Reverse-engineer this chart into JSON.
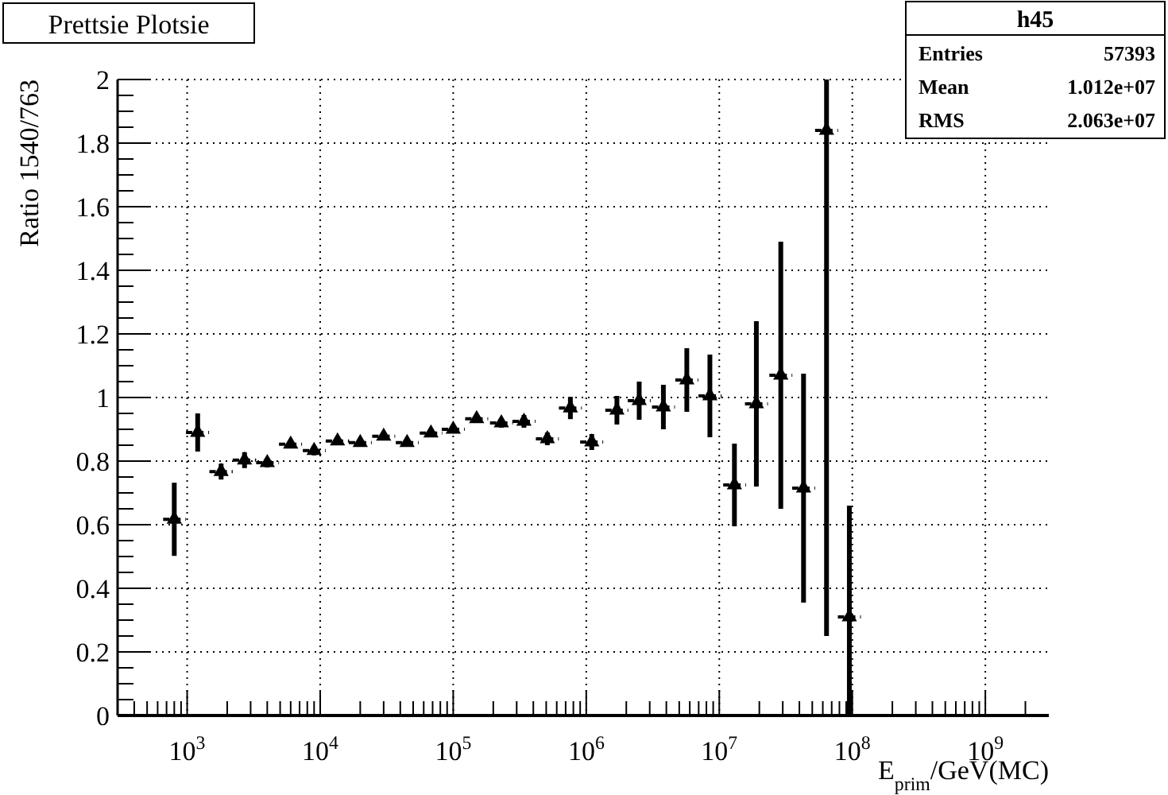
{
  "chart_data": {
    "type": "scatter",
    "title": "Prettsie Plotsie",
    "xlabel": "E$_{prim}$/GeV(MC)",
    "ylabel": "Ratio 1540/763",
    "annotations": [
      "h45",
      "Entries",
      "57393",
      "Mean",
      "1.012e+07",
      "RMS",
      "2.063e+07"
    ],
    "log": "x",
    "grid": true,
    "marker": "triangle",
    "xlim": [
      300,
      3000000000
    ],
    "ylim": [
      0,
      2
    ],
    "xticks": [
      {
        "value": 400,
        "label": null
      },
      {
        "value": 500,
        "label": null
      },
      {
        "value": 600,
        "label": null
      },
      {
        "value": 700,
        "label": null
      },
      {
        "value": 800,
        "label": null
      },
      {
        "value": 900,
        "label": null
      },
      {
        "value": 1000,
        "label": "10$^{3}$"
      },
      {
        "value": 2000,
        "label": null
      },
      {
        "value": 3000,
        "label": null
      },
      {
        "value": 4000,
        "label": null
      },
      {
        "value": 5000,
        "label": null
      },
      {
        "value": 6000,
        "label": null
      },
      {
        "value": 7000,
        "label": null
      },
      {
        "value": 8000,
        "label": null
      },
      {
        "value": 9000,
        "label": null
      },
      {
        "value": 10000,
        "label": "10$^{4}$"
      },
      {
        "value": 20000,
        "label": null
      },
      {
        "value": 30000,
        "label": null
      },
      {
        "value": 40000,
        "label": null
      },
      {
        "value": 50000,
        "label": null
      },
      {
        "value": 60000,
        "label": null
      },
      {
        "value": 70000,
        "label": null
      },
      {
        "value": 80000,
        "label": null
      },
      {
        "value": 90000,
        "label": null
      },
      {
        "value": 100000,
        "label": "10$^{5}$"
      },
      {
        "value": 200000,
        "label": null
      },
      {
        "value": 300000,
        "label": null
      },
      {
        "value": 400000,
        "label": null
      },
      {
        "value": 500000,
        "label": null
      },
      {
        "value": 600000,
        "label": null
      },
      {
        "value": 700000,
        "label": null
      },
      {
        "value": 800000,
        "label": null
      },
      {
        "value": 900000,
        "label": null
      },
      {
        "value": 1000000,
        "label": "10$^{6}$"
      },
      {
        "value": 2000000,
        "label": null
      },
      {
        "value": 3000000,
        "label": null
      },
      {
        "value": 4000000,
        "label": null
      },
      {
        "value": 5000000,
        "label": null
      },
      {
        "value": 6000000,
        "label": null
      },
      {
        "value": 7000000,
        "label": null
      },
      {
        "value": 8000000,
        "label": null
      },
      {
        "value": 9000000,
        "label": null
      },
      {
        "value": 10000000,
        "label": "10$^{7}$"
      },
      {
        "value": 20000000,
        "label": null
      },
      {
        "value": 30000000,
        "label": null
      },
      {
        "value": 40000000,
        "label": null
      },
      {
        "value": 50000000,
        "label": null
      },
      {
        "value": 60000000,
        "label": null
      },
      {
        "value": 70000000,
        "label": null
      },
      {
        "value": 80000000,
        "label": null
      },
      {
        "value": 90000000,
        "label": null
      },
      {
        "value": 100000000,
        "label": "10$^{8}$"
      },
      {
        "value": 200000000,
        "label": null
      },
      {
        "value": 300000000,
        "label": null
      },
      {
        "value": 400000000,
        "label": null
      },
      {
        "value": 500000000,
        "label": null
      },
      {
        "value": 600000000,
        "label": null
      },
      {
        "value": 700000000,
        "label": null
      },
      {
        "value": 800000000,
        "label": null
      },
      {
        "value": 900000000,
        "label": null
      },
      {
        "value": 1000000000,
        "label": "10$^{9}$"
      },
      {
        "value": 2000000000,
        "label": null
      }
    ],
    "yticks": [
      0,
      {
        "value": 0.05,
        "label": null
      },
      {
        "value": 0.1,
        "label": null
      },
      {
        "value": 0.15,
        "label": null
      },
      0.2,
      {
        "value": 0.25,
        "label": null
      },
      {
        "value": 0.3,
        "label": null
      },
      {
        "value": 0.35,
        "label": null
      },
      0.4,
      {
        "value": 0.45,
        "label": null
      },
      {
        "value": 0.5,
        "label": null
      },
      {
        "value": 0.55,
        "label": null
      },
      0.6,
      {
        "value": 0.65,
        "label": null
      },
      {
        "value": 0.7,
        "label": null
      },
      {
        "value": 0.75,
        "label": null
      },
      0.8,
      {
        "value": 0.85,
        "label": null
      },
      {
        "value": 0.9,
        "label": null
      },
      {
        "value": 0.95,
        "label": null
      },
      1,
      {
        "value": 1.05,
        "label": null
      },
      {
        "value": 1.1,
        "label": null
      },
      {
        "value": 1.15,
        "label": null
      },
      1.2,
      {
        "value": 1.25,
        "label": null
      },
      {
        "value": 1.3,
        "label": null
      },
      {
        "value": 1.35,
        "label": null
      },
      1.4,
      {
        "value": 1.45,
        "label": null
      },
      {
        "value": 1.5,
        "label": null
      },
      {
        "value": 1.55,
        "label": null
      },
      1.6,
      {
        "value": 1.65,
        "label": null
      },
      {
        "value": 1.7,
        "label": null
      },
      {
        "value": 1.75,
        "label": null
      },
      1.8,
      {
        "value": 1.85,
        "label": null
      },
      {
        "value": 1.9,
        "label": null
      },
      {
        "value": 1.95,
        "label": null
      },
      2
    ],
    "x": [
      800,
      1200,
      1800,
      2700,
      4000,
      6000,
      9000,
      13500,
      20000,
      30000,
      45000,
      68000,
      100000,
      150000,
      230000,
      340000,
      510000,
      760000,
      1100000,
      1700000,
      2500000,
      3800000,
      5700000,
      8500000,
      13000000,
      19000000,
      29000000,
      43000000,
      64000000,
      95000000
    ],
    "series": [
      {
        "color": "#000000",
        "values": [
          0.617,
          0.89,
          0.767,
          0.803,
          0.795,
          0.853,
          0.833,
          0.863,
          0.858,
          0.878,
          0.858,
          0.888,
          0.9,
          0.933,
          0.92,
          0.925,
          0.87,
          0.967,
          0.86,
          0.96,
          0.99,
          0.97,
          1.055,
          1.005,
          0.725,
          0.98,
          1.07,
          0.715,
          1.84,
          0.31
        ],
        "errors": [
          0.115,
          0.06,
          0.025,
          0.025,
          0.015,
          0.012,
          0.015,
          0.01,
          0.01,
          0.012,
          0.01,
          0.012,
          0.012,
          0.012,
          0.015,
          0.02,
          0.02,
          0.035,
          0.025,
          0.045,
          0.06,
          0.07,
          0.1,
          0.13,
          0.13,
          0.26,
          0.42,
          0.36,
          [
            0.25,
            2
          ],
          [
            0,
            0.66
          ]
        ],
        "xerrors": [
          [
            660,
            980
          ],
          [
            980,
            1460
          ],
          [
            1470,
            2200
          ],
          [
            2200,
            3300
          ],
          [
            3300,
            4900
          ],
          [
            4900,
            7300
          ],
          [
            7400,
            11000
          ],
          [
            11000,
            16500
          ],
          [
            16400,
            24400
          ],
          [
            24600,
            36600
          ],
          [
            37000,
            55000
          ],
          [
            56000,
            83000
          ],
          [
            82000,
            122000
          ],
          [
            123000,
            183000
          ],
          [
            189000,
            281000
          ],
          [
            279000,
            415000
          ],
          [
            418000,
            622000
          ],
          [
            623000,
            927000
          ],
          [
            900000,
            1340000
          ],
          [
            1390000,
            2070000
          ],
          [
            2050000,
            3050000
          ],
          [
            3120000,
            4640000
          ],
          [
            4670000,
            6950000
          ],
          [
            6970000,
            10400000
          ],
          [
            10700000,
            15900000
          ],
          [
            15600000,
            23200000
          ],
          [
            23800000,
            35400000
          ],
          [
            35300000,
            52500000
          ],
          [
            52500000,
            78100000
          ],
          [
            77900000,
            116000000
          ]
        ]
      }
    ]
  }
}
